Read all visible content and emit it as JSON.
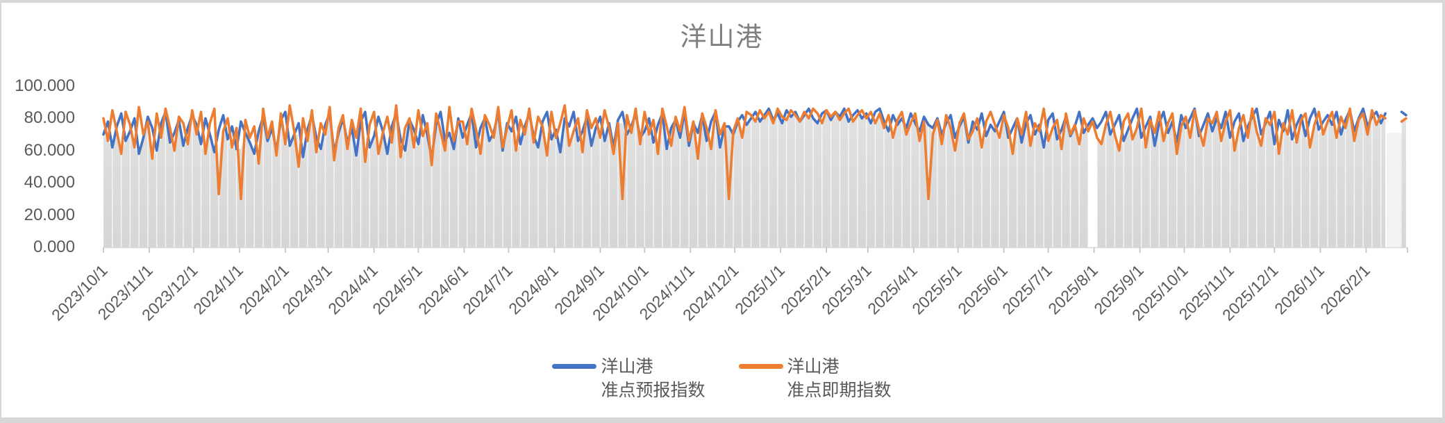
{
  "title": "洋山港",
  "legend": {
    "items": [
      {
        "name": "洋山港",
        "sub": "准点预报指数",
        "color": "#4472C4"
      },
      {
        "name": "洋山港",
        "sub": "准点即期指数",
        "color": "#ED7D31"
      }
    ]
  },
  "chart_data": {
    "type": "line",
    "title": "洋山港",
    "series": [
      {
        "name": "洋山港准点预报指数",
        "color": "#4472C4"
      },
      {
        "name": "洋山港准点即期指数",
        "color": "#ED7D31"
      }
    ],
    "x_start_date": "2023/10/1",
    "x_axis": {
      "ticks": [
        {
          "label": "2023/10/1",
          "d": 0
        },
        {
          "label": "2023/11/1",
          "d": 31
        },
        {
          "label": "2023/12/1",
          "d": 61
        },
        {
          "label": "2024/1/1",
          "d": 92
        },
        {
          "label": "2024/2/1",
          "d": 123
        },
        {
          "label": "2024/3/1",
          "d": 152
        },
        {
          "label": "2024/4/1",
          "d": 183
        },
        {
          "label": "2024/5/1",
          "d": 213
        },
        {
          "label": "2024/6/1",
          "d": 244
        },
        {
          "label": "2024/7/1",
          "d": 274
        },
        {
          "label": "2024/8/1",
          "d": 305
        },
        {
          "label": "2024/9/1",
          "d": 336
        },
        {
          "label": "2024/10/1",
          "d": 366
        },
        {
          "label": "2024/11/1",
          "d": 397
        },
        {
          "label": "2024/12/1",
          "d": 427
        },
        {
          "label": "2025/1/1",
          "d": 458
        },
        {
          "label": "2025/2/1",
          "d": 489
        },
        {
          "label": "2025/3/1",
          "d": 517
        },
        {
          "label": "2025/4/1",
          "d": 548
        },
        {
          "label": "2025/5/1",
          "d": 578
        },
        {
          "label": "2025/6/1",
          "d": 609
        },
        {
          "label": "2025/7/1",
          "d": 639
        },
        {
          "label": "2025/8/1",
          "d": 670
        },
        {
          "label": "2025/9/1",
          "d": 701
        },
        {
          "label": "2025/10/1",
          "d": 731
        },
        {
          "label": "2025/11/1",
          "d": 762
        },
        {
          "label": "2025/12/1",
          "d": 792
        },
        {
          "label": "2026/1/1",
          "d": 823
        },
        {
          "label": "2026/2/1",
          "d": 854
        },
        {
          "label": "",
          "d": 882
        }
      ]
    },
    "y_axis": {
      "range": [
        0,
        100
      ],
      "ticks": [
        {
          "label": "0.000",
          "v": 0
        },
        {
          "label": "20.000",
          "v": 20
        },
        {
          "label": "40.000",
          "v": 40
        },
        {
          "label": "60.000",
          "v": 60
        },
        {
          "label": "80.000",
          "v": 80
        },
        {
          "label": "100.000",
          "v": 100
        }
      ]
    },
    "colors": {
      "forecast": "#4472C4",
      "spot": "#ED7D31",
      "area_top": "#E1E1E1",
      "area_bottom": "#D6D6D6",
      "post_band": "#F2F2F2",
      "axis_line": "#D9D9D9",
      "tick": "#BFBFBF",
      "labels": "#595959",
      "title": "#7F7F7F"
    },
    "area_gaps": [
      [
        667,
        671
      ]
    ],
    "post_band": {
      "from": 868,
      "to": 878,
      "top": 71
    },
    "points": [
      [
        0,
        70,
        80
      ],
      [
        3,
        78,
        66
      ],
      [
        6,
        62,
        85
      ],
      [
        9,
        75,
        72
      ],
      [
        12,
        83,
        58
      ],
      [
        15,
        66,
        84
      ],
      [
        18,
        72,
        76
      ],
      [
        21,
        80,
        62
      ],
      [
        24,
        58,
        87
      ],
      [
        27,
        68,
        70
      ],
      [
        30,
        81,
        78
      ],
      [
        33,
        74,
        55
      ],
      [
        36,
        60,
        83
      ],
      [
        39,
        77,
        68
      ],
      [
        42,
        84,
        86
      ],
      [
        45,
        65,
        74
      ],
      [
        48,
        71,
        60
      ],
      [
        51,
        79,
        81
      ],
      [
        54,
        63,
        77
      ],
      [
        57,
        74,
        64
      ],
      [
        60,
        82,
        85
      ],
      [
        63,
        76,
        70
      ],
      [
        66,
        64,
        84
      ],
      [
        69,
        80,
        58
      ],
      [
        72,
        70,
        77
      ],
      [
        75,
        59,
        86
      ],
      [
        78,
        73,
        33
      ],
      [
        81,
        82,
        72
      ],
      [
        84,
        67,
        80
      ],
      [
        87,
        75,
        62
      ],
      [
        90,
        61,
        74
      ],
      [
        93,
        78,
        30
      ],
      [
        96,
        71,
        79
      ],
      [
        99,
        65,
        68
      ],
      [
        102,
        58,
        75
      ],
      [
        105,
        72,
        52
      ],
      [
        108,
        81,
        86
      ],
      [
        111,
        66,
        68
      ],
      [
        114,
        74,
        78
      ],
      [
        117,
        60,
        57
      ],
      [
        120,
        79,
        83
      ],
      [
        123,
        84,
        64
      ],
      [
        126,
        63,
        88
      ],
      [
        129,
        70,
        72
      ],
      [
        132,
        77,
        50
      ],
      [
        135,
        56,
        80
      ],
      [
        138,
        73,
        66
      ],
      [
        141,
        82,
        85
      ],
      [
        144,
        68,
        59
      ],
      [
        147,
        61,
        77
      ],
      [
        150,
        76,
        70
      ],
      [
        153,
        83,
        87
      ],
      [
        156,
        59,
        54
      ],
      [
        159,
        71,
        74
      ],
      [
        162,
        80,
        82
      ],
      [
        165,
        65,
        61
      ],
      [
        168,
        74,
        79
      ],
      [
        171,
        57,
        68
      ],
      [
        174,
        78,
        86
      ],
      [
        177,
        84,
        53
      ],
      [
        180,
        62,
        76
      ],
      [
        183,
        69,
        84
      ],
      [
        186,
        81,
        58
      ],
      [
        189,
        72,
        71
      ],
      [
        192,
        58,
        81
      ],
      [
        195,
        75,
        65
      ],
      [
        198,
        83,
        88
      ],
      [
        201,
        67,
        56
      ],
      [
        204,
        60,
        74
      ],
      [
        207,
        79,
        80
      ],
      [
        210,
        73,
        62
      ],
      [
        213,
        64,
        85
      ],
      [
        216,
        82,
        69
      ],
      [
        219,
        70,
        77
      ],
      [
        222,
        55,
        51
      ],
      [
        225,
        76,
        83
      ],
      [
        228,
        84,
        72
      ],
      [
        231,
        66,
        60
      ],
      [
        234,
        71,
        87
      ],
      [
        237,
        61,
        66
      ],
      [
        240,
        80,
        78
      ],
      [
        243,
        68,
        78
      ],
      [
        246,
        76,
        64
      ],
      [
        249,
        83,
        86
      ],
      [
        252,
        62,
        73
      ],
      [
        255,
        74,
        58
      ],
      [
        258,
        80,
        82
      ],
      [
        261,
        66,
        76
      ],
      [
        264,
        71,
        68
      ],
      [
        267,
        84,
        87
      ],
      [
        270,
        60,
        62
      ],
      [
        273,
        77,
        74
      ],
      [
        276,
        72,
        85
      ],
      [
        279,
        81,
        60
      ],
      [
        282,
        64,
        79
      ],
      [
        285,
        75,
        70
      ],
      [
        288,
        83,
        86
      ],
      [
        291,
        69,
        65
      ],
      [
        294,
        62,
        81
      ],
      [
        297,
        78,
        75
      ],
      [
        300,
        84,
        57
      ],
      [
        303,
        67,
        84
      ],
      [
        306,
        73,
        68
      ],
      [
        309,
        59,
        77
      ],
      [
        312,
        80,
        88
      ],
      [
        315,
        75,
        63
      ],
      [
        318,
        84,
        72
      ],
      [
        321,
        66,
        80
      ],
      [
        324,
        72,
        59
      ],
      [
        327,
        81,
        85
      ],
      [
        330,
        63,
        74
      ],
      [
        333,
        74,
        80
      ],
      [
        336,
        81,
        68
      ],
      [
        339,
        66,
        85
      ],
      [
        342,
        77,
        74
      ],
      [
        345,
        62,
        58
      ],
      [
        348,
        79,
        77
      ],
      [
        351,
        84,
        30
      ],
      [
        354,
        70,
        82
      ],
      [
        357,
        75,
        71
      ],
      [
        360,
        83,
        86
      ],
      [
        363,
        68,
        64
      ],
      [
        366,
        72,
        84
      ],
      [
        369,
        80,
        70
      ],
      [
        372,
        65,
        79
      ],
      [
        375,
        76,
        58
      ],
      [
        378,
        83,
        86
      ],
      [
        381,
        61,
        75
      ],
      [
        384,
        74,
        63
      ],
      [
        387,
        79,
        81
      ],
      [
        390,
        68,
        72
      ],
      [
        393,
        84,
        87
      ],
      [
        396,
        63,
        66
      ],
      [
        399,
        77,
        78
      ],
      [
        402,
        71,
        55
      ],
      [
        405,
        82,
        83
      ],
      [
        408,
        66,
        74
      ],
      [
        411,
        78,
        61
      ],
      [
        414,
        84,
        85
      ],
      [
        417,
        62,
        70
      ],
      [
        420,
        75,
        77
      ],
      [
        423,
        75,
        30
      ],
      [
        426,
        70,
        72
      ],
      [
        429,
        78,
        80
      ],
      [
        432,
        82,
        68
      ],
      [
        435,
        76,
        84
      ],
      [
        438,
        80,
        82
      ],
      [
        441,
        84,
        78
      ],
      [
        444,
        78,
        85
      ],
      [
        447,
        82,
        80
      ],
      [
        450,
        86,
        84
      ],
      [
        453,
        79,
        77
      ],
      [
        456,
        83,
        86
      ],
      [
        459,
        77,
        81
      ],
      [
        462,
        85,
        79
      ],
      [
        465,
        81,
        85
      ],
      [
        468,
        84,
        82
      ],
      [
        471,
        78,
        78
      ],
      [
        474,
        82,
        84
      ],
      [
        477,
        86,
        80
      ],
      [
        480,
        80,
        86
      ],
      [
        483,
        77,
        83
      ],
      [
        486,
        83,
        77
      ],
      [
        489,
        85,
        85
      ],
      [
        492,
        79,
        81
      ],
      [
        495,
        84,
        84
      ],
      [
        498,
        81,
        79
      ],
      [
        501,
        86,
        83
      ],
      [
        504,
        78,
        86
      ],
      [
        507,
        82,
        78
      ],
      [
        510,
        85,
        82
      ],
      [
        513,
        80,
        85
      ],
      [
        516,
        83,
        80
      ],
      [
        519,
        77,
        84
      ],
      [
        522,
        84,
        77
      ],
      [
        525,
        86,
        83
      ],
      [
        528,
        78,
        74
      ],
      [
        531,
        72,
        82
      ],
      [
        534,
        82,
        68
      ],
      [
        537,
        76,
        79
      ],
      [
        540,
        80,
        84
      ],
      [
        543,
        74,
        70
      ],
      [
        546,
        83,
        77
      ],
      [
        549,
        77,
        83
      ],
      [
        552,
        72,
        66
      ],
      [
        555,
        81,
        78
      ],
      [
        558,
        76,
        30
      ],
      [
        561,
        74,
        70
      ],
      [
        564,
        80,
        79
      ],
      [
        567,
        70,
        64
      ],
      [
        570,
        77,
        82
      ],
      [
        573,
        82,
        74
      ],
      [
        576,
        68,
        60
      ],
      [
        579,
        75,
        77
      ],
      [
        582,
        81,
        83
      ],
      [
        585,
        65,
        67
      ],
      [
        588,
        78,
        72
      ],
      [
        591,
        73,
        80
      ],
      [
        594,
        83,
        62
      ],
      [
        597,
        69,
        78
      ],
      [
        600,
        76,
        84
      ],
      [
        603,
        72,
        76
      ],
      [
        606,
        78,
        68
      ],
      [
        609,
        84,
        82
      ],
      [
        612,
        68,
        74
      ],
      [
        615,
        74,
        58
      ],
      [
        618,
        80,
        80
      ],
      [
        621,
        65,
        70
      ],
      [
        624,
        77,
        84
      ],
      [
        627,
        82,
        63
      ],
      [
        630,
        70,
        77
      ],
      [
        633,
        76,
        72
      ],
      [
        636,
        62,
        86
      ],
      [
        639,
        79,
        66
      ],
      [
        642,
        83,
        74
      ],
      [
        645,
        67,
        79
      ],
      [
        648,
        73,
        61
      ],
      [
        651,
        81,
        83
      ],
      [
        654,
        69,
        70
      ],
      [
        657,
        75,
        76
      ],
      [
        660,
        84,
        64
      ],
      [
        663,
        71,
        80
      ],
      [
        666,
        76,
        72
      ],
      [
        669,
        80,
        78
      ],
      [
        672,
        74,
        68
      ],
      [
        675,
        78,
        64
      ],
      [
        678,
        84,
        76
      ],
      [
        681,
        70,
        84
      ],
      [
        684,
        76,
        70
      ],
      [
        687,
        82,
        60
      ],
      [
        690,
        66,
        78
      ],
      [
        693,
        73,
        83
      ],
      [
        696,
        80,
        67
      ],
      [
        699,
        86,
        74
      ],
      [
        702,
        68,
        86
      ],
      [
        705,
        75,
        62
      ],
      [
        708,
        81,
        79
      ],
      [
        711,
        63,
        71
      ],
      [
        714,
        77,
        84
      ],
      [
        717,
        84,
        66
      ],
      [
        720,
        71,
        77
      ],
      [
        723,
        78,
        83
      ],
      [
        726,
        65,
        58
      ],
      [
        729,
        82,
        75
      ],
      [
        732,
        74,
        81
      ],
      [
        735,
        80,
        68
      ],
      [
        738,
        86,
        85
      ],
      [
        741,
        69,
        73
      ],
      [
        744,
        76,
        63
      ],
      [
        747,
        83,
        80
      ],
      [
        750,
        72,
        77
      ],
      [
        753,
        80,
        84
      ],
      [
        756,
        74,
        66
      ],
      [
        759,
        84,
        78
      ],
      [
        762,
        68,
        85
      ],
      [
        765,
        78,
        60
      ],
      [
        768,
        83,
        74
      ],
      [
        771,
        66,
        82
      ],
      [
        774,
        75,
        68
      ],
      [
        777,
        81,
        86
      ],
      [
        780,
        86,
        72
      ],
      [
        783,
        70,
        63
      ],
      [
        786,
        77,
        80
      ],
      [
        789,
        84,
        76
      ],
      [
        792,
        64,
        84
      ],
      [
        795,
        79,
        58
      ],
      [
        798,
        72,
        77
      ],
      [
        801,
        85,
        70
      ],
      [
        804,
        67,
        85
      ],
      [
        807,
        76,
        65
      ],
      [
        810,
        82,
        79
      ],
      [
        813,
        69,
        83
      ],
      [
        816,
        80,
        62
      ],
      [
        819,
        86,
        76
      ],
      [
        822,
        73,
        84
      ],
      [
        825,
        78,
        70
      ],
      [
        828,
        82,
        78
      ],
      [
        831,
        76,
        84
      ],
      [
        834,
        84,
        68
      ],
      [
        837,
        70,
        81
      ],
      [
        840,
        79,
        74
      ],
      [
        843,
        85,
        86
      ],
      [
        846,
        72,
        66
      ],
      [
        849,
        80,
        79
      ],
      [
        852,
        86,
        83
      ],
      [
        855,
        75,
        70
      ],
      [
        858,
        81,
        85
      ],
      [
        861,
        84,
        76
      ],
      [
        864,
        77,
        82
      ],
      [
        867,
        83,
        80
      ],
      [
        878,
        84,
        78
      ],
      [
        881,
        82,
        80
      ]
    ]
  }
}
